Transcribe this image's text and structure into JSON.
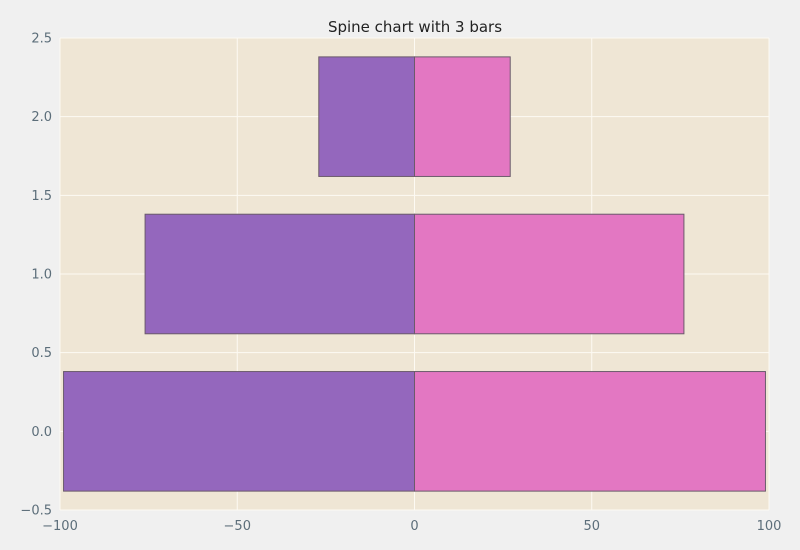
{
  "chart_data": {
    "type": "bar",
    "orientation": "horizontal",
    "title": "Spine chart with 3 bars",
    "xlabel": "",
    "ylabel": "",
    "xlim": [
      -100,
      100
    ],
    "ylim": [
      -0.5,
      2.5
    ],
    "bar_height": 0.76,
    "bars": [
      {
        "y": 0,
        "left_value": -99,
        "right_value": 99
      },
      {
        "y": 1,
        "left_value": -76,
        "right_value": 76
      },
      {
        "y": 2,
        "left_value": -27,
        "right_value": 27
      }
    ],
    "x_ticks": [
      {
        "value": -100,
        "label": "−100"
      },
      {
        "value": -50,
        "label": "−50"
      },
      {
        "value": 0,
        "label": "0"
      },
      {
        "value": 50,
        "label": "50"
      },
      {
        "value": 100,
        "label": "100"
      }
    ],
    "y_ticks": [
      {
        "value": -0.5,
        "label": "−0.5"
      },
      {
        "value": 0.0,
        "label": "0.0"
      },
      {
        "value": 0.5,
        "label": "0.5"
      },
      {
        "value": 1.0,
        "label": "1.0"
      },
      {
        "value": 1.5,
        "label": "1.5"
      },
      {
        "value": 2.0,
        "label": "2.0"
      },
      {
        "value": 2.5,
        "label": "2.5"
      }
    ],
    "grid": true,
    "colors": {
      "background": "#f0f0f0",
      "plot_background": "#efe6d5",
      "grid": "#fdfaf3",
      "left_bar": "#9467bd",
      "right_bar": "#e377c2",
      "bar_edge": "#6b5a6b"
    }
  }
}
